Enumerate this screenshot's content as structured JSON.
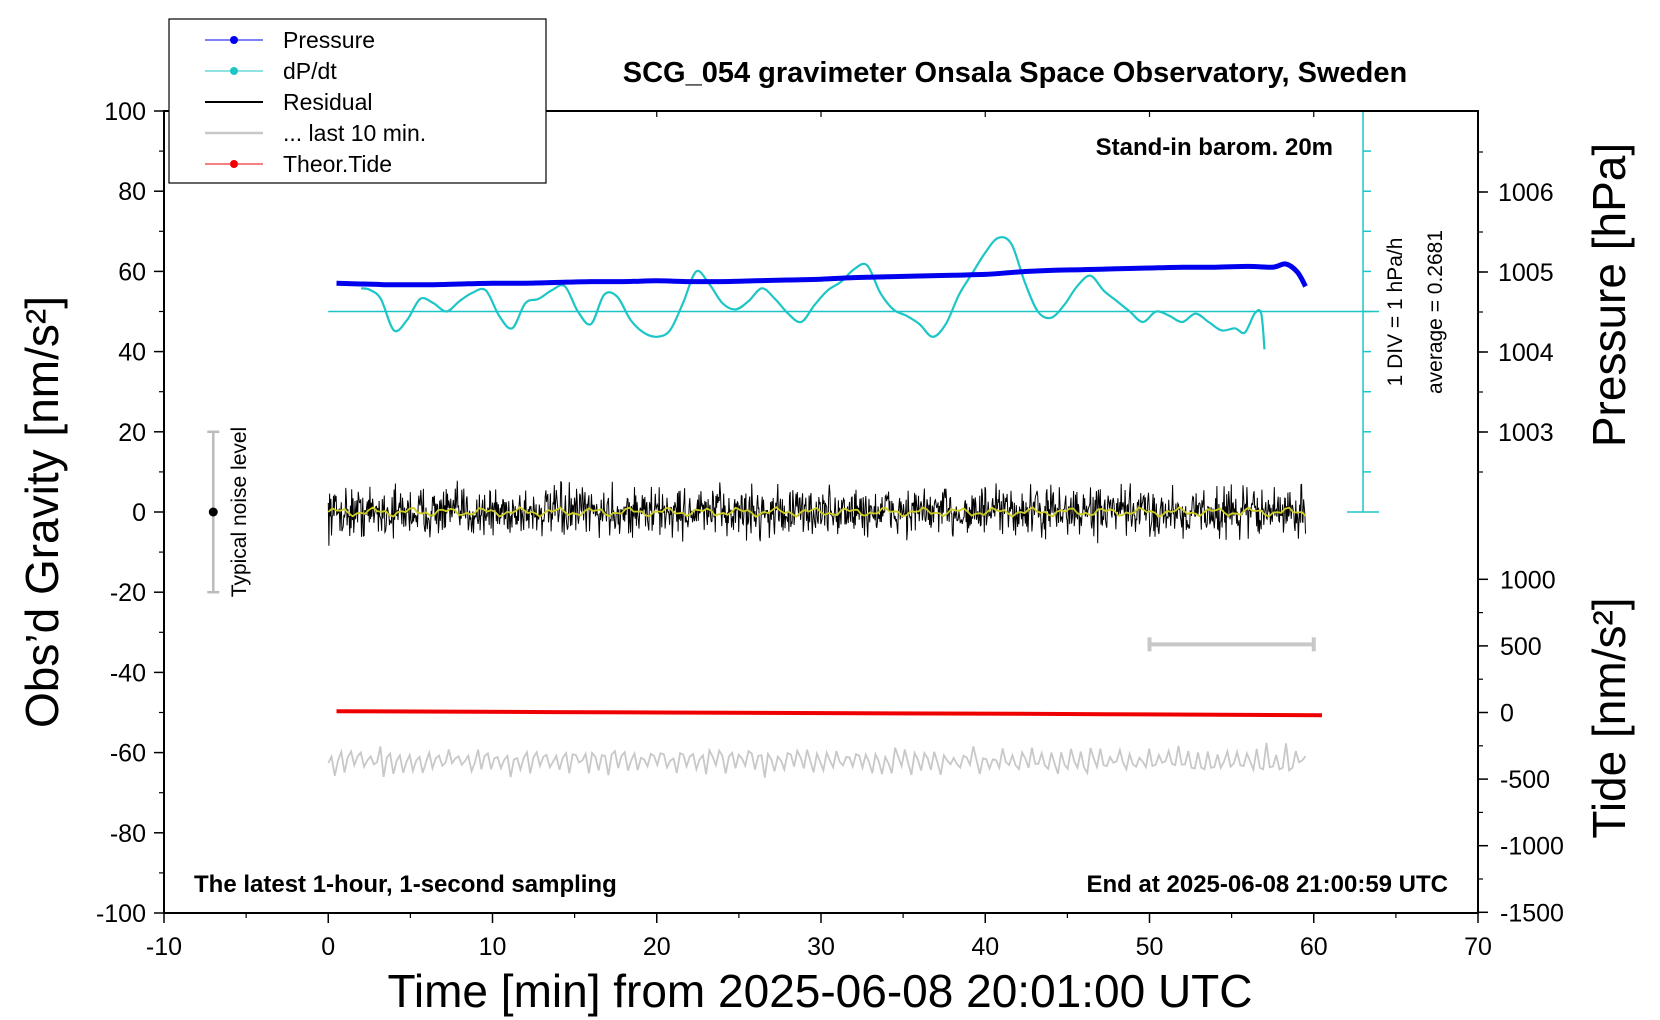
{
  "chart_data": {
    "type": "line",
    "title": "SCG_054 gravimeter Onsala Space Observatory, Sweden",
    "xlabel": "Time [min] from 2025-06-08 20:01:00 UTC",
    "ylabel": "Obs’d Gravity [nm/s²]",
    "ylabel_right_top": "Pressure [hPa]",
    "ylabel_right_bottom": "Tide [nm/s²]",
    "xlim": [
      -10,
      70
    ],
    "ylim": [
      -100,
      100
    ],
    "x_ticks": [
      "-10",
      "0",
      "10",
      "20",
      "30",
      "40",
      "50",
      "60",
      "70"
    ],
    "y_ticks": [
      "-100",
      "-80",
      "-60",
      "-40",
      "-20",
      "0",
      "20",
      "40",
      "60",
      "80",
      "100"
    ],
    "pressure_ticks": [
      "1003",
      "1004",
      "1005",
      "1006"
    ],
    "tide_ticks": [
      "-1500",
      "-1000",
      "-500",
      "0",
      "500",
      "1000"
    ],
    "legend": {
      "placement": "top-left",
      "entries": [
        "Pressure",
        "dP/dt",
        "Residual",
        "... last 10 min.",
        "Theor.Tide"
      ]
    },
    "annotations": {
      "barometer": "Stand-in barom. 20m",
      "div_label": "1 DIV = 1 hPa/h",
      "average_label": "average = 0.2681",
      "noise_label": "Typical noise level",
      "bottom_left": "The latest 1-hour, 1-second sampling",
      "bottom_right": "End at 2025-06-08 21:00:59 UTC"
    },
    "colors": {
      "pressure": "#0000ee",
      "dpdt": "#1cc6c6",
      "residual": "#000000",
      "last10": "#c8c8c8",
      "tide": "#ee0000",
      "smooth": "#cccc22"
    },
    "pressure_series": {
      "name": "Pressure",
      "x": [
        0.5,
        2,
        4,
        6,
        8,
        10,
        12,
        14,
        16,
        18,
        20,
        22,
        24,
        26,
        28,
        30,
        32,
        34,
        36,
        38,
        40,
        42,
        44,
        46,
        48,
        50,
        52,
        54,
        56,
        57.5,
        58.3,
        59,
        59.5
      ],
      "values": [
        1004.86,
        1004.85,
        1004.84,
        1004.84,
        1004.85,
        1004.86,
        1004.86,
        1004.87,
        1004.88,
        1004.88,
        1004.89,
        1004.88,
        1004.88,
        1004.89,
        1004.9,
        1004.91,
        1004.93,
        1004.94,
        1004.95,
        1004.96,
        1004.97,
        1005.0,
        1005.02,
        1005.03,
        1005.04,
        1005.05,
        1005.06,
        1005.06,
        1005.07,
        1005.06,
        1005.1,
        1005.0,
        1004.82
      ]
    },
    "dpdt_series": {
      "name": "dP/dt",
      "x": [
        2,
        2.5,
        3.2,
        4,
        4.8,
        5.6,
        6.4,
        7.2,
        8,
        8.8,
        9.6,
        10.4,
        11.2,
        12,
        12.8,
        13.6,
        14.4,
        15.2,
        16,
        16.8,
        17.6,
        18.4,
        19.2,
        20,
        20.8,
        21.6,
        22.4,
        23.2,
        24,
        24.8,
        25.6,
        26.4,
        27.2,
        28,
        28.8,
        29.6,
        30.4,
        31.2,
        32,
        32.8,
        33.6,
        34.4,
        35.2,
        36,
        36.8,
        37.6,
        38.4,
        39.2,
        40,
        40.8,
        41.6,
        42.4,
        43.2,
        44,
        44.8,
        45.6,
        46.4,
        47.2,
        48,
        48.8,
        49.6,
        50.4,
        51.2,
        52,
        52.8,
        53.6,
        54.4,
        55.2,
        55.8,
        56.4,
        56.8,
        57
      ],
      "values": [
        5.5,
        5.2,
        3.0,
        -4.5,
        -2.0,
        3.0,
        2.0,
        0.0,
        2.5,
        4.5,
        5.0,
        -1.0,
        -4.0,
        2.0,
        3.0,
        5.0,
        6.0,
        0.0,
        -3.0,
        4.0,
        3.5,
        -2.0,
        -5.0,
        -6.0,
        -4.5,
        2.0,
        9.5,
        6.5,
        2.0,
        0.5,
        2.5,
        5.5,
        3.0,
        -0.5,
        -2.5,
        1.5,
        5.0,
        7.0,
        10.0,
        11.0,
        4.5,
        0.5,
        -1.0,
        -3.0,
        -6.0,
        -3.0,
        4.0,
        9.0,
        14.0,
        17.5,
        16.0,
        7.0,
        0.0,
        -1.5,
        1.5,
        6.0,
        8.5,
        5.0,
        2.5,
        0.0,
        -2.5,
        0.0,
        -1.0,
        -2.5,
        -0.5,
        -2.5,
        -4.5,
        -4.0,
        -5.0,
        -0.5,
        -0.5,
        -9.0
      ]
    },
    "residual_summary": {
      "x_start": 0,
      "x_end": 59.5,
      "level": 0,
      "noise_amplitude": 3
    },
    "tide_series": {
      "name": "Theor.Tide",
      "x": [
        0.5,
        20,
        42,
        60.5
      ],
      "values": [
        10,
        0,
        -10,
        -20
      ]
    },
    "last10_summary": {
      "x_start": 0,
      "x_end": 59.5,
      "level": -62,
      "amplitude": 3
    },
    "last10_window": {
      "x": [
        50,
        60
      ],
      "value": -33
    },
    "noise_bar": {
      "x": -7,
      "center": 0,
      "min": -20,
      "max": 20
    },
    "dpdt_reference": {
      "x": 63,
      "zero_level": 50,
      "bottom_level": 0,
      "top_level": 100,
      "divisions": 10
    }
  }
}
